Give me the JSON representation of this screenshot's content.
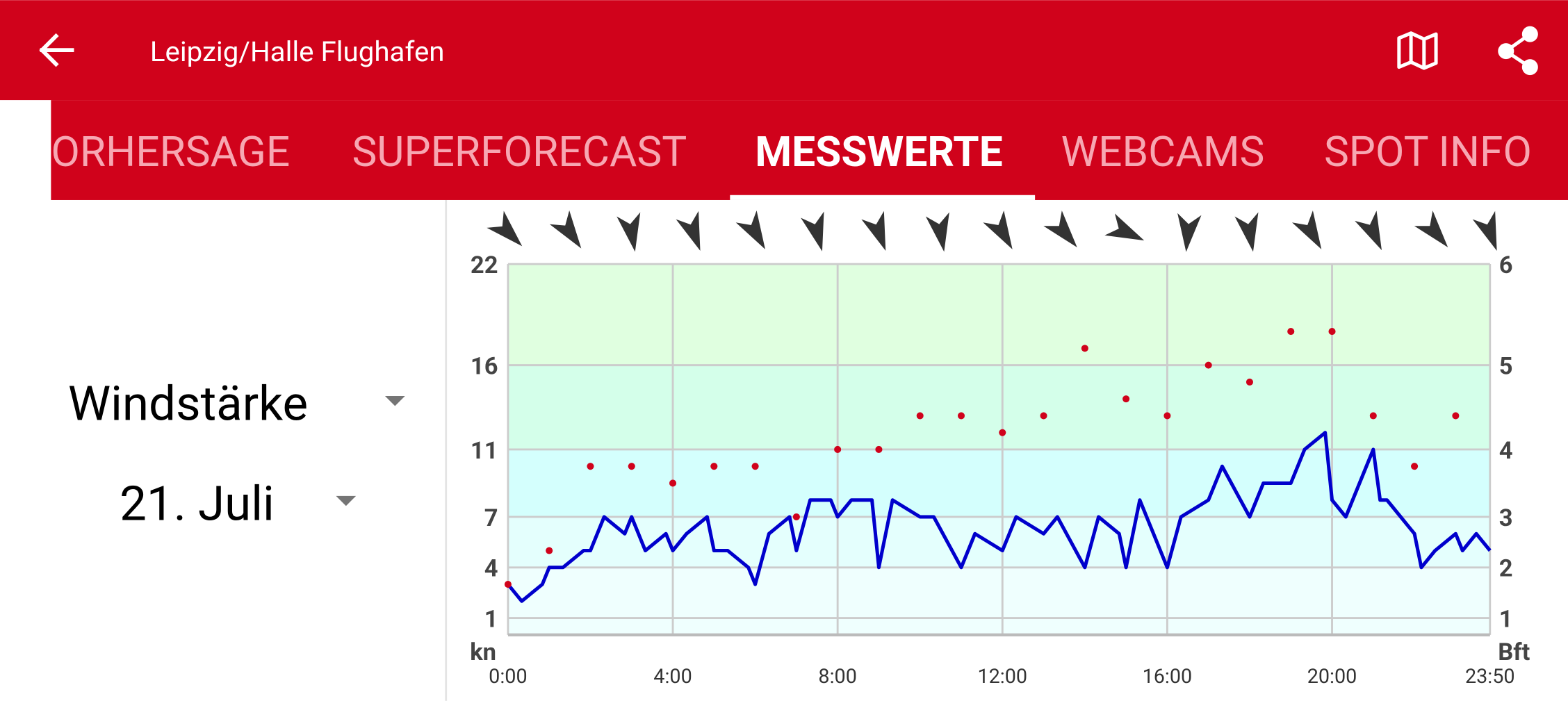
{
  "header": {
    "title": "Leipzig/Halle Flughafen"
  },
  "tabs": {
    "items": [
      "ORHERSAGE",
      "SUPERFORECAST",
      "MESSWERTE",
      "WEBCAMS",
      "SPOT INFO"
    ],
    "active": 2
  },
  "selectors": {
    "measure": "Windstärke",
    "date": "21. Juli"
  },
  "chart_data": {
    "type": "line",
    "y_unit": "kn",
    "y2_unit": "Bft",
    "xlim": [
      0,
      1430
    ],
    "xticks": [
      {
        "value": 0,
        "label": "0:00"
      },
      {
        "value": 240,
        "label": "4:00"
      },
      {
        "value": 480,
        "label": "8:00"
      },
      {
        "value": 720,
        "label": "12:00"
      },
      {
        "value": 960,
        "label": "16:00"
      },
      {
        "value": 1200,
        "label": "20:00"
      },
      {
        "value": 1430,
        "label": "23:50"
      }
    ],
    "ylim": [
      0,
      22
    ],
    "yticks": [
      1,
      4,
      7,
      11,
      16,
      22
    ],
    "y2_labels": [
      1,
      2,
      3,
      4,
      5,
      6
    ],
    "band_colors": [
      "#effffe",
      "#effffe",
      "#e4fffd",
      "#d4fffd",
      "#d4ffea",
      "#e0ffe0"
    ],
    "grid": true,
    "series": [
      {
        "type": "line",
        "color": "#0000cc",
        "x": [
          0,
          20,
          50,
          60,
          80,
          110,
          120,
          140,
          170,
          180,
          200,
          230,
          240,
          260,
          290,
          300,
          320,
          350,
          360,
          380,
          410,
          420,
          440,
          470,
          480,
          500,
          530,
          540,
          560,
          600,
          620,
          660,
          680,
          720,
          740,
          780,
          800,
          840,
          860,
          890,
          900,
          920,
          960,
          980,
          1020,
          1040,
          1080,
          1100,
          1140,
          1160,
          1190,
          1200,
          1220,
          1260,
          1270,
          1280,
          1320,
          1330,
          1350,
          1380,
          1390,
          1410,
          1430
        ],
        "values": [
          3,
          2,
          3,
          4,
          4,
          5,
          5,
          7,
          6,
          7,
          5,
          6,
          5,
          6,
          7,
          5,
          5,
          4,
          3,
          6,
          7,
          5,
          8,
          8,
          7,
          8,
          8,
          4,
          8,
          7,
          7,
          4,
          6,
          5,
          7,
          6,
          7,
          4,
          7,
          6,
          4,
          8,
          4,
          7,
          8,
          10,
          7,
          9,
          9,
          11,
          12,
          8,
          7,
          11,
          8,
          8,
          6,
          4,
          5,
          6,
          5,
          6,
          5
        ]
      },
      {
        "type": "scatter",
        "color": "#d0021b",
        "x": [
          0,
          60,
          120,
          180,
          240,
          300,
          360,
          420,
          480,
          540,
          600,
          660,
          720,
          780,
          840,
          900,
          960,
          1020,
          1080,
          1140,
          1200,
          1260,
          1320,
          1380
        ],
        "values": [
          3,
          5,
          10,
          10,
          9,
          10,
          10,
          7,
          11,
          11,
          13,
          13,
          12,
          13,
          17,
          14,
          13,
          16,
          15,
          18,
          18,
          13,
          10,
          13
        ]
      }
    ],
    "wind_directions": {
      "color": "#333333",
      "x": [
        0,
        90,
        180,
        270,
        360,
        450,
        540,
        630,
        720,
        810,
        900,
        990,
        1080,
        1170,
        1260,
        1350,
        1430
      ],
      "values": [
        135,
        145,
        170,
        160,
        150,
        165,
        160,
        170,
        150,
        140,
        115,
        185,
        170,
        150,
        155,
        140,
        160
      ]
    }
  }
}
